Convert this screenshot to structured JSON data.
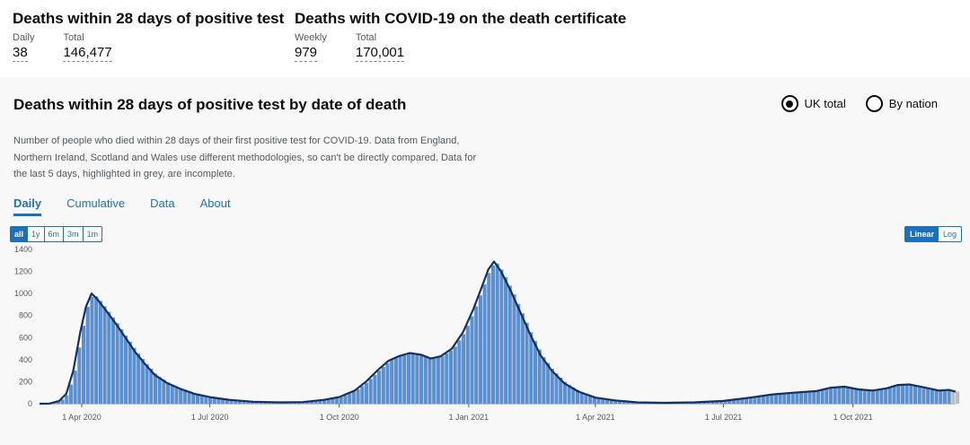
{
  "headline": {
    "group1": {
      "title": "Deaths within 28 days of positive test",
      "metrics": [
        {
          "label": "Daily",
          "value": "38"
        },
        {
          "label": "Total",
          "value": "146,477"
        }
      ]
    },
    "group2": {
      "title": "Deaths with COVID-19 on the death certificate",
      "metrics": [
        {
          "label": "Weekly",
          "value": "979"
        },
        {
          "label": "Total",
          "value": "170,001"
        }
      ]
    }
  },
  "card": {
    "title": "Deaths within 28 days of positive test by date of death",
    "radios": [
      {
        "label": "UK total",
        "selected": true
      },
      {
        "label": "By nation",
        "selected": false
      }
    ],
    "description": "Number of people who died within 28 days of their first positive test for COVID-19. Data from England, Northern Ireland, Scotland and Wales use different methodologies, so can't be directly compared. Data for the last 5 days, highlighted in grey, are incomplete.",
    "tabs": [
      {
        "label": "Daily",
        "active": true
      },
      {
        "label": "Cumulative",
        "active": false
      },
      {
        "label": "Data",
        "active": false
      },
      {
        "label": "About",
        "active": false
      }
    ],
    "ranges": [
      {
        "label": "all",
        "active": true
      },
      {
        "label": "1y",
        "active": false
      },
      {
        "label": "6m",
        "active": false
      },
      {
        "label": "3m",
        "active": false
      },
      {
        "label": "1m",
        "active": false
      }
    ],
    "scales": [
      {
        "label": "Linear",
        "active": true
      },
      {
        "label": "Log",
        "active": false
      }
    ]
  },
  "colors": {
    "bar": "#5b8fcf",
    "bar_incomplete": "#bdbdbd",
    "line": "#12315f",
    "link": "#1d70b8"
  },
  "chart_data": {
    "type": "bar",
    "title": "",
    "xlabel": "",
    "ylabel": "",
    "ylim": [
      0,
      1400
    ],
    "yticks": [
      0,
      200,
      400,
      600,
      800,
      1000,
      1200,
      1400
    ],
    "x_start": "2020-03-02",
    "x_end": "2021-12-13",
    "xticks": [
      {
        "date": "2020-04-01",
        "label": "1 Apr 2020"
      },
      {
        "date": "2020-07-01",
        "label": "1 Jul 2020"
      },
      {
        "date": "2020-10-01",
        "label": "1 Oct 2020"
      },
      {
        "date": "2021-01-01",
        "label": "1 Jan 2021"
      },
      {
        "date": "2021-04-01",
        "label": "1 Apr 2021"
      },
      {
        "date": "2021-07-01",
        "label": "1 Jul 2021"
      },
      {
        "date": "2021-10-01",
        "label": "1 Oct 2021"
      }
    ],
    "series": [
      {
        "type": "bar",
        "points": [
          [
            "2020-03-02",
            0
          ],
          [
            "2020-03-09",
            2
          ],
          [
            "2020-03-16",
            25
          ],
          [
            "2020-03-21",
            90
          ],
          [
            "2020-03-26",
            300
          ],
          [
            "2020-03-31",
            650
          ],
          [
            "2020-04-04",
            880
          ],
          [
            "2020-04-08",
            1000
          ],
          [
            "2020-04-12",
            950
          ],
          [
            "2020-04-18",
            850
          ],
          [
            "2020-04-25",
            730
          ],
          [
            "2020-05-02",
            600
          ],
          [
            "2020-05-09",
            470
          ],
          [
            "2020-05-16",
            360
          ],
          [
            "2020-05-23",
            260
          ],
          [
            "2020-06-01",
            185
          ],
          [
            "2020-06-10",
            135
          ],
          [
            "2020-06-20",
            90
          ],
          [
            "2020-07-01",
            60
          ],
          [
            "2020-07-15",
            35
          ],
          [
            "2020-08-01",
            18
          ],
          [
            "2020-08-20",
            12
          ],
          [
            "2020-09-05",
            15
          ],
          [
            "2020-09-20",
            35
          ],
          [
            "2020-10-01",
            60
          ],
          [
            "2020-10-12",
            120
          ],
          [
            "2020-10-20",
            200
          ],
          [
            "2020-10-28",
            300
          ],
          [
            "2020-11-05",
            390
          ],
          [
            "2020-11-12",
            430
          ],
          [
            "2020-11-20",
            460
          ],
          [
            "2020-11-28",
            445
          ],
          [
            "2020-12-05",
            410
          ],
          [
            "2020-12-12",
            430
          ],
          [
            "2020-12-20",
            500
          ],
          [
            "2020-12-28",
            650
          ],
          [
            "2021-01-04",
            850
          ],
          [
            "2021-01-10",
            1050
          ],
          [
            "2021-01-15",
            1220
          ],
          [
            "2021-01-19",
            1290
          ],
          [
            "2021-01-24",
            1200
          ],
          [
            "2021-01-31",
            1020
          ],
          [
            "2021-02-07",
            820
          ],
          [
            "2021-02-14",
            620
          ],
          [
            "2021-02-21",
            440
          ],
          [
            "2021-03-01",
            300
          ],
          [
            "2021-03-10",
            185
          ],
          [
            "2021-03-20",
            110
          ],
          [
            "2021-04-01",
            55
          ],
          [
            "2021-04-15",
            30
          ],
          [
            "2021-05-01",
            12
          ],
          [
            "2021-05-20",
            8
          ],
          [
            "2021-06-10",
            12
          ],
          [
            "2021-07-01",
            25
          ],
          [
            "2021-07-20",
            55
          ],
          [
            "2021-08-05",
            85
          ],
          [
            "2021-08-20",
            100
          ],
          [
            "2021-09-05",
            115
          ],
          [
            "2021-09-15",
            145
          ],
          [
            "2021-09-25",
            155
          ],
          [
            "2021-10-05",
            130
          ],
          [
            "2021-10-15",
            120
          ],
          [
            "2021-10-25",
            140
          ],
          [
            "2021-11-02",
            170
          ],
          [
            "2021-11-10",
            175
          ],
          [
            "2021-11-20",
            150
          ],
          [
            "2021-12-01",
            120
          ],
          [
            "2021-12-08",
            125
          ],
          [
            "2021-12-13",
            110
          ]
        ]
      },
      {
        "type": "line",
        "points": [
          [
            "2020-03-02",
            0
          ],
          [
            "2020-03-09",
            2
          ],
          [
            "2020-03-16",
            25
          ],
          [
            "2020-03-21",
            90
          ],
          [
            "2020-03-26",
            300
          ],
          [
            "2020-03-31",
            650
          ],
          [
            "2020-04-04",
            880
          ],
          [
            "2020-04-08",
            1000
          ],
          [
            "2020-04-12",
            950
          ],
          [
            "2020-04-18",
            850
          ],
          [
            "2020-04-25",
            730
          ],
          [
            "2020-05-02",
            600
          ],
          [
            "2020-05-09",
            470
          ],
          [
            "2020-05-16",
            360
          ],
          [
            "2020-05-23",
            260
          ],
          [
            "2020-06-01",
            185
          ],
          [
            "2020-06-10",
            135
          ],
          [
            "2020-06-20",
            90
          ],
          [
            "2020-07-01",
            60
          ],
          [
            "2020-07-15",
            35
          ],
          [
            "2020-08-01",
            18
          ],
          [
            "2020-08-20",
            12
          ],
          [
            "2020-09-05",
            15
          ],
          [
            "2020-09-20",
            35
          ],
          [
            "2020-10-01",
            60
          ],
          [
            "2020-10-12",
            120
          ],
          [
            "2020-10-20",
            200
          ],
          [
            "2020-10-28",
            300
          ],
          [
            "2020-11-05",
            390
          ],
          [
            "2020-11-12",
            430
          ],
          [
            "2020-11-20",
            460
          ],
          [
            "2020-11-28",
            445
          ],
          [
            "2020-12-05",
            410
          ],
          [
            "2020-12-12",
            430
          ],
          [
            "2020-12-20",
            500
          ],
          [
            "2020-12-28",
            650
          ],
          [
            "2021-01-04",
            850
          ],
          [
            "2021-01-10",
            1050
          ],
          [
            "2021-01-15",
            1220
          ],
          [
            "2021-01-19",
            1290
          ],
          [
            "2021-01-24",
            1200
          ],
          [
            "2021-01-31",
            1020
          ],
          [
            "2021-02-07",
            820
          ],
          [
            "2021-02-14",
            620
          ],
          [
            "2021-02-21",
            440
          ],
          [
            "2021-03-01",
            300
          ],
          [
            "2021-03-10",
            185
          ],
          [
            "2021-03-20",
            110
          ],
          [
            "2021-04-01",
            55
          ],
          [
            "2021-04-15",
            30
          ],
          [
            "2021-05-01",
            12
          ],
          [
            "2021-05-20",
            8
          ],
          [
            "2021-06-10",
            12
          ],
          [
            "2021-07-01",
            25
          ],
          [
            "2021-07-20",
            55
          ],
          [
            "2021-08-05",
            85
          ],
          [
            "2021-08-20",
            100
          ],
          [
            "2021-09-05",
            115
          ],
          [
            "2021-09-15",
            145
          ],
          [
            "2021-09-25",
            155
          ],
          [
            "2021-10-05",
            130
          ],
          [
            "2021-10-15",
            120
          ],
          [
            "2021-10-25",
            140
          ],
          [
            "2021-11-02",
            170
          ],
          [
            "2021-11-10",
            175
          ],
          [
            "2021-11-20",
            150
          ],
          [
            "2021-12-01",
            120
          ],
          [
            "2021-12-08",
            125
          ],
          [
            "2021-12-13",
            110
          ]
        ]
      }
    ],
    "incomplete_days": 5,
    "grid": false
  }
}
